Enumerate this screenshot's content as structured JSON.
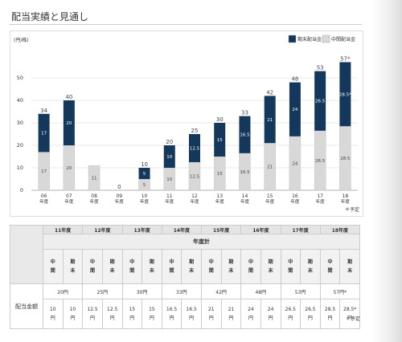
{
  "page": {
    "title": "配当実績と見通し",
    "footnote": "＊予定"
  },
  "legend": {
    "items": [
      {
        "label": "期末配当金",
        "color": "#13385c"
      },
      {
        "label": "中間配当金",
        "color": "#d8d8d8"
      }
    ]
  },
  "chart_data": {
    "type": "bar",
    "stacked": true,
    "title": "",
    "unit": "(円/株)",
    "xlabel": "",
    "ylabel": "",
    "ylim": [
      0,
      60
    ],
    "yticks": [
      0,
      10,
      20,
      30,
      40,
      50
    ],
    "grid": "horizontal",
    "legend_position": "top-right",
    "categories": [
      [
        "06",
        "年度"
      ],
      [
        "07",
        "年度"
      ],
      [
        "08",
        "年度"
      ],
      [
        "09",
        "年度"
      ],
      [
        "10",
        "年度"
      ],
      [
        "11",
        "年度"
      ],
      [
        "12",
        "年度"
      ],
      [
        "13",
        "年度"
      ],
      [
        "14",
        "年度"
      ],
      [
        "15",
        "年度"
      ],
      [
        "16",
        "年度"
      ],
      [
        "17",
        "年度"
      ],
      [
        "18",
        "年度"
      ]
    ],
    "series": [
      {
        "name": "中間配当金",
        "color": "#d8d8d8",
        "values": [
          17,
          20,
          11,
          0,
          5,
          10,
          12.5,
          15,
          16.5,
          21,
          24,
          26.5,
          28.5
        ]
      },
      {
        "name": "期末配当金",
        "color": "#13385c",
        "values": [
          17,
          20,
          0,
          0,
          5,
          10,
          12.5,
          15,
          16.5,
          21,
          24,
          26.5,
          28.5
        ]
      }
    ],
    "segment_labels": {
      "中間配当金": [
        "17",
        "20",
        "11",
        "",
        "5",
        "10",
        "12.5",
        "15",
        "16.5",
        "21",
        "24",
        "26.5",
        "28.5"
      ],
      "期末配当金": [
        "17",
        "20",
        "",
        "",
        "5",
        "10",
        "12.5",
        "15",
        "16.5",
        "21",
        "24",
        "26.5",
        "28.5*"
      ]
    },
    "totals": [
      "34",
      "40",
      "",
      "0",
      "10",
      "20",
      "25",
      "30",
      "33",
      "42",
      "48",
      "53",
      "57*"
    ],
    "scheduled_note": "＊予定"
  },
  "table": {
    "years": [
      "11年度",
      "12年度",
      "13年度",
      "14年度",
      "15年度",
      "16年度",
      "17年度",
      "18年度"
    ],
    "sum_header": "年度計",
    "sub_headers": [
      [
        "中",
        "間"
      ],
      [
        "期",
        "末"
      ]
    ],
    "row_label": "配当金額",
    "totals": [
      "20円",
      "25円",
      "30円",
      "33円",
      "42円",
      "48円",
      "53円",
      "57円*"
    ],
    "parts": [
      [
        [
          "10",
          "円"
        ],
        [
          "10",
          "円"
        ]
      ],
      [
        [
          "12.5",
          "円"
        ],
        [
          "12.5",
          "円"
        ]
      ],
      [
        [
          "15",
          "円"
        ],
        [
          "15",
          "円"
        ]
      ],
      [
        [
          "16.5",
          "円"
        ],
        [
          "16.5",
          "円"
        ]
      ],
      [
        [
          "21",
          "円"
        ],
        [
          "21",
          "円"
        ]
      ],
      [
        [
          "24",
          "円"
        ],
        [
          "24",
          "円"
        ]
      ],
      [
        [
          "26.5",
          "円"
        ],
        [
          "26.5",
          "円"
        ]
      ],
      [
        [
          "28.5",
          "円"
        ],
        [
          "28.5*",
          "円"
        ]
      ]
    ],
    "footnote": "＊予定"
  }
}
